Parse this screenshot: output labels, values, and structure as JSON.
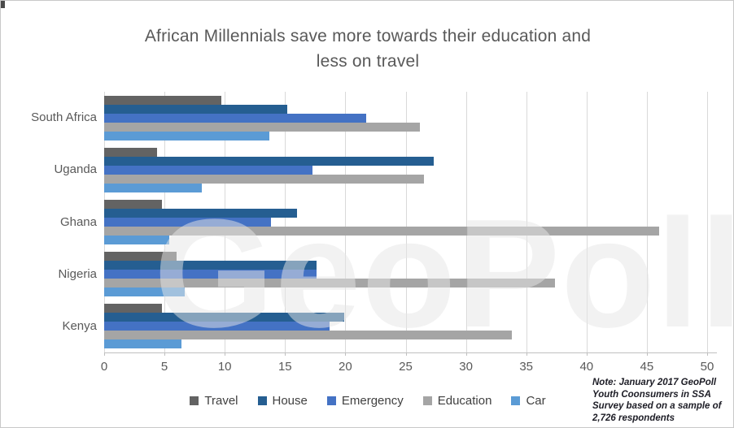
{
  "window": {
    "background": "#ffffff",
    "border_color": "#c9c9c9"
  },
  "chart_data": {
    "type": "bar",
    "orientation": "horizontal",
    "title": "African Millennials save more towards their education and less on travel",
    "title_lines": [
      "African Millennials save more towards their education and",
      "less on travel"
    ],
    "categories": [
      "South Africa",
      "Uganda",
      "Ghana",
      "Nigeria",
      "Kenya"
    ],
    "series": [
      {
        "name": "Travel",
        "color": "#636363",
        "values": [
          9.7,
          4.4,
          4.8,
          6.0,
          4.8
        ]
      },
      {
        "name": "House",
        "color": "#255E91",
        "values": [
          15.2,
          27.3,
          16.0,
          17.6,
          19.9
        ]
      },
      {
        "name": "Emergency",
        "color": "#4472C4",
        "values": [
          21.7,
          17.3,
          13.8,
          17.6,
          18.7
        ]
      },
      {
        "name": "Education",
        "color": "#A5A5A5",
        "values": [
          26.2,
          26.5,
          46.0,
          37.4,
          33.8
        ]
      },
      {
        "name": "Car",
        "color": "#5B9BD5",
        "values": [
          13.7,
          8.1,
          5.4,
          6.7,
          6.4
        ]
      }
    ],
    "xlabel": "",
    "ylabel": "",
    "xlim": [
      0,
      50
    ],
    "xticks": [
      0,
      5,
      10,
      15,
      20,
      25,
      30,
      35,
      40,
      45,
      50
    ],
    "grid": true,
    "gridline_color": "#d9d9d9",
    "axis_line_color": "#bfbfbf",
    "text_color": "#595959",
    "legend_text_color": "#404040",
    "legend_position": "bottom"
  },
  "watermark": {
    "text": "GeoPoll",
    "color": "#e7e7e7"
  },
  "note": {
    "full_text": "Note:  January 2017 GeoPoll Youth Coonsumers in SSA Survey based on a sample of 2,726 respondents",
    "lines": [
      "Note:  January 2017 GeoPoll",
      "Youth Coonsumers in SSA",
      "Survey based on a sample of",
      "2,726 respondents"
    ]
  }
}
